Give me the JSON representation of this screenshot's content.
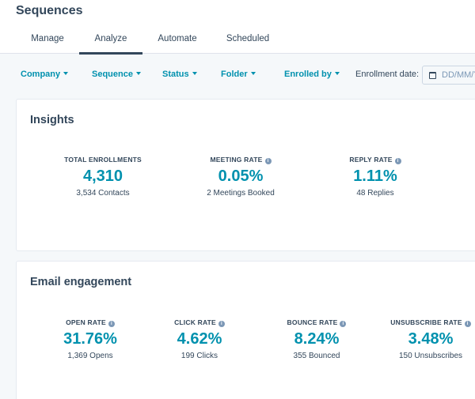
{
  "header": {
    "title": "Sequences",
    "tabs": [
      {
        "label": "Manage"
      },
      {
        "label": "Analyze"
      },
      {
        "label": "Automate"
      },
      {
        "label": "Scheduled"
      }
    ]
  },
  "filters": {
    "company": "Company",
    "sequence": "Sequence",
    "status": "Status",
    "folder": "Folder",
    "enrolled_by": "Enrolled by",
    "enrollment_date_label": "Enrollment date:",
    "enrollment_date_placeholder": "DD/MM/YYYY"
  },
  "insights": {
    "title": "Insights",
    "metrics": [
      {
        "label": "TOTAL ENROLLMENTS",
        "value": "4,310",
        "sub": "3,534 Contacts"
      },
      {
        "label": "MEETING RATE",
        "value": "0.05%",
        "sub": "2 Meetings Booked"
      },
      {
        "label": "REPLY RATE",
        "value": "1.11%",
        "sub": "48 Replies"
      }
    ]
  },
  "email_engagement": {
    "title": "Email engagement",
    "metrics": [
      {
        "label": "OPEN RATE",
        "value": "31.76%",
        "sub": "1,369 Opens"
      },
      {
        "label": "CLICK RATE",
        "value": "4.62%",
        "sub": "199 Clicks"
      },
      {
        "label": "BOUNCE RATE",
        "value": "8.24%",
        "sub": "355 Bounced"
      },
      {
        "label": "UNSUBSCRIBE RATE",
        "value": "3.48%",
        "sub": "150 Unsubscribes"
      }
    ]
  },
  "colors": {
    "accent": "#0091ae",
    "text": "#33475b",
    "background": "#f5f8fa"
  },
  "icons": {
    "info": "info-icon",
    "calendar": "calendar-icon",
    "dropdown": "caret-down-icon"
  }
}
